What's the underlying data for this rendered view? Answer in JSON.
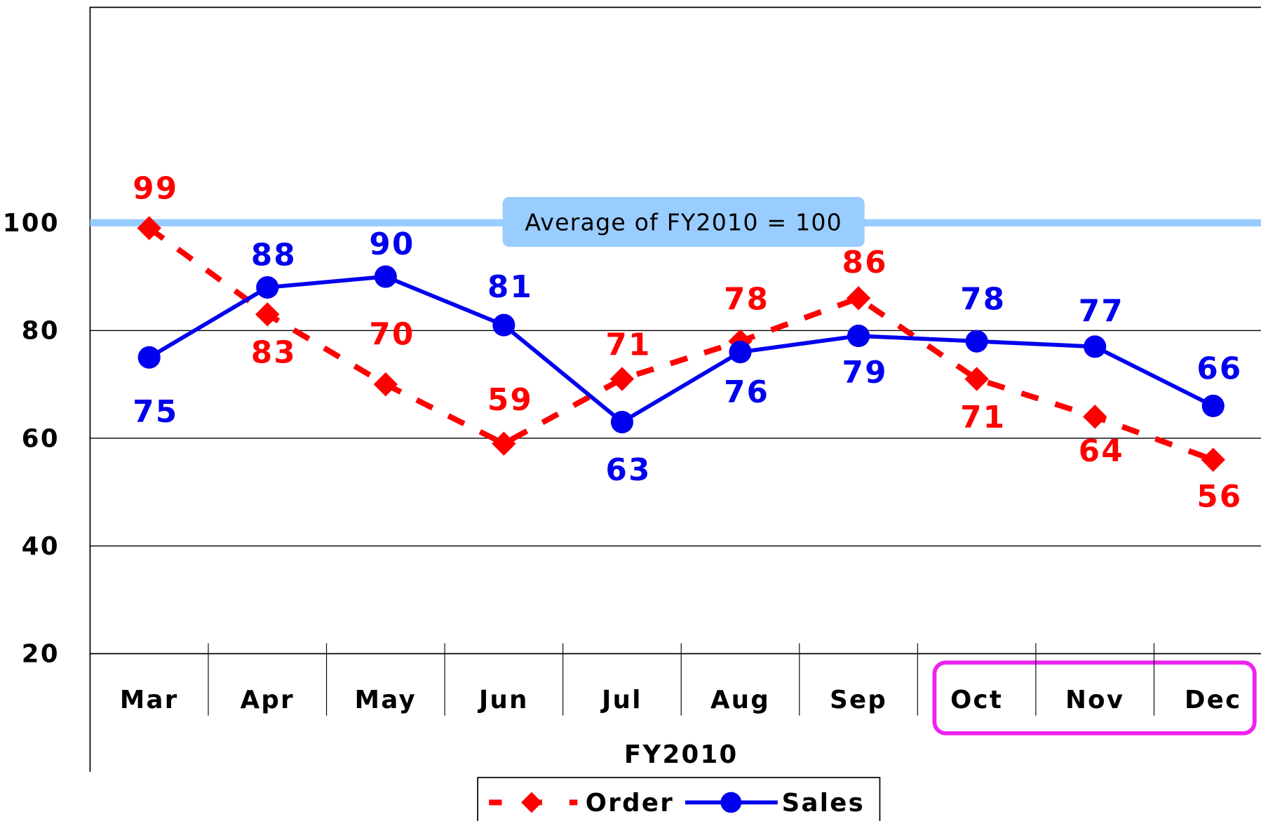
{
  "chart_data": {
    "type": "line",
    "categories": [
      "Mar",
      "Apr",
      "May",
      "Jun",
      "Jul",
      "Aug",
      "Sep",
      "Oct",
      "Nov",
      "Dec"
    ],
    "x_label": "FY2010",
    "series": [
      {
        "name": "Order",
        "color": "#ff0000",
        "values": [
          99,
          83,
          70,
          59,
          71,
          78,
          86,
          71,
          64,
          56
        ]
      },
      {
        "name": "Sales",
        "color": "#0000ee",
        "values": [
          75,
          88,
          90,
          81,
          63,
          76,
          79,
          78,
          77,
          66
        ]
      }
    ],
    "ylim": [
      20,
      140
    ],
    "yticks": [
      20,
      40,
      60,
      80,
      100
    ],
    "grid": true,
    "reference_line": {
      "value": 100,
      "label": "Average of FY2010 = 100",
      "color": "#99ccff"
    },
    "legend": "bottom"
  }
}
